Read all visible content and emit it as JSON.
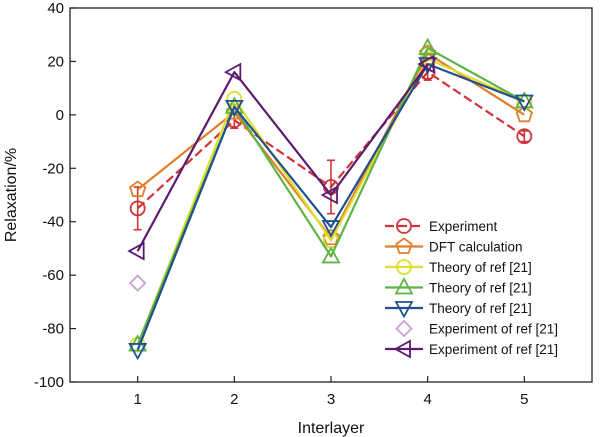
{
  "chart_data": {
    "type": "line",
    "xlabel": "Interlayer",
    "ylabel": "Relaxation/%",
    "xlim": [
      0.3,
      5.7
    ],
    "ylim": [
      -100,
      40
    ],
    "x_ticks": [
      1,
      2,
      3,
      4,
      5
    ],
    "y_ticks": [
      -100,
      -80,
      -60,
      -40,
      -20,
      0,
      20,
      40
    ],
    "grid": false,
    "legend_position": "lower-right",
    "series": [
      {
        "name": "Experiment",
        "color": "#d0343a",
        "marker": "circle",
        "dashed": true,
        "x": [
          1,
          2,
          3,
          4,
          5
        ],
        "y": [
          -35,
          -2,
          -27,
          16,
          -8
        ],
        "error": [
          8,
          3,
          10,
          3,
          2
        ]
      },
      {
        "name": "DFT calculation",
        "color": "#e07f2a",
        "marker": "pentagon",
        "dashed": false,
        "x": [
          1,
          2,
          3,
          4,
          5
        ],
        "y": [
          -28,
          1,
          -46,
          23,
          0
        ]
      },
      {
        "name": "Theory of ref [21]",
        "color": "#dede2e",
        "marker": "circle",
        "dashed": false,
        "x": [
          1,
          2,
          3,
          4,
          5
        ],
        "y": [
          -86,
          6,
          -47,
          21,
          5
        ]
      },
      {
        "name": "Theory of ref [21]",
        "color": "#5fb346",
        "marker": "triangle-up",
        "dashed": false,
        "x": [
          1,
          2,
          3,
          4,
          5
        ],
        "y": [
          -86,
          3,
          -53,
          25,
          5
        ]
      },
      {
        "name": "Theory of ref [21]",
        "color": "#22508c",
        "marker": "triangle-down",
        "dashed": false,
        "x": [
          1,
          2,
          3,
          4,
          5
        ],
        "y": [
          -88,
          3,
          -42,
          19,
          5
        ]
      },
      {
        "name": "Experiment of ref [21]",
        "color": "#c9a0cf",
        "marker": "diamond",
        "dashed": false,
        "x": [
          1
        ],
        "y": [
          -63
        ]
      },
      {
        "name": "Experiment of ref [21]",
        "color": "#5a1a6e",
        "marker": "triangle-left",
        "dashed": false,
        "x": [
          1,
          2,
          3,
          4
        ],
        "y": [
          -51,
          16,
          -30,
          19
        ]
      }
    ]
  }
}
